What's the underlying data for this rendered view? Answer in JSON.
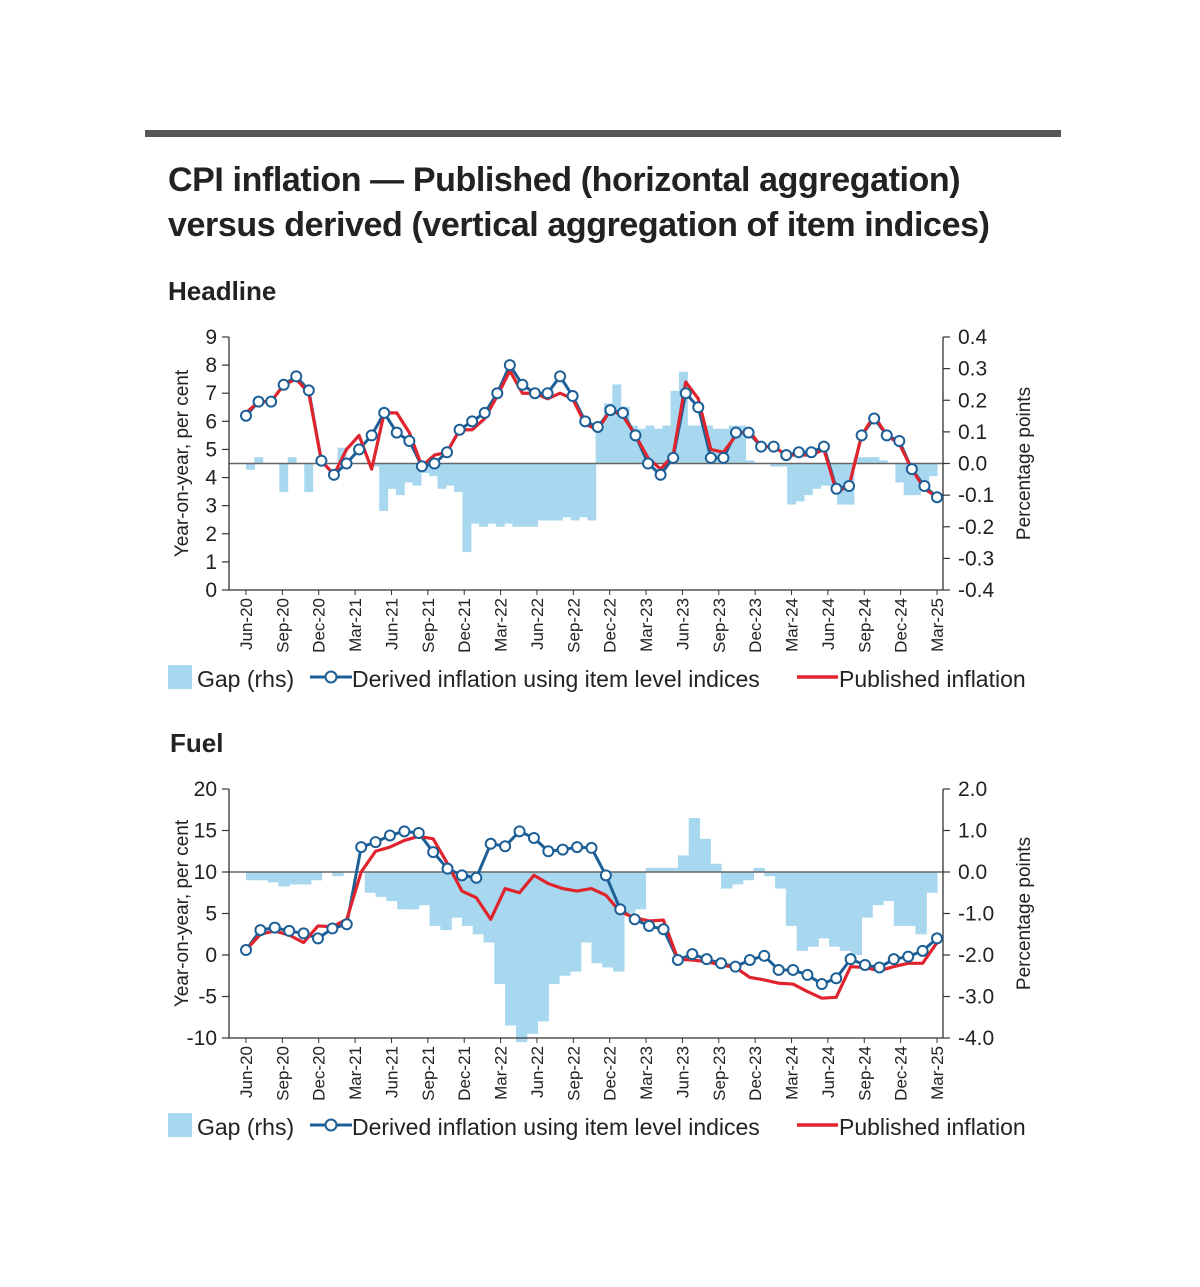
{
  "title": "CPI inflation — Published (horizontal aggregation) versus derived (vertical aggregation of item indices)",
  "colors": {
    "gap": "#a8d8ef",
    "derived": "#1c5f96",
    "published": "#e0242e",
    "zero_line": "#666666",
    "top_rule": "#555555"
  },
  "legend": {
    "gap": "Gap (rhs)",
    "derived": "Derived inflation using item level indices",
    "published": "Published inflation"
  },
  "chart_data": [
    {
      "type": "line",
      "panel_title": "Headline",
      "ylabel": "Year-on-year, per cent",
      "y2label": "Percentage points",
      "ylim": [
        0,
        9
      ],
      "yticks": [
        "0",
        "1",
        "2",
        "3",
        "4",
        "5",
        "6",
        "7",
        "8",
        "9"
      ],
      "y2lim": [
        -0.4,
        0.4
      ],
      "y2ticks": [
        "-0.4",
        "-0.3",
        "-0.2",
        "-0.1",
        "0.0",
        "0.1",
        "0.2",
        "0.3",
        "0.4"
      ],
      "x_tick_labels": [
        "Jun-20",
        "Sep-20",
        "Dec-20",
        "Mar-21",
        "Jun-21",
        "Sep-21",
        "Dec-21",
        "Mar-22",
        "Jun-22",
        "Sep-22",
        "Dec-22",
        "Mar-23",
        "Jun-23",
        "Sep-23",
        "Dec-23",
        "Mar-24",
        "Jun-24",
        "Sep-24",
        "Dec-24",
        "Mar-25"
      ],
      "series": [
        {
          "name": "Gap (rhs)",
          "kind": "bar",
          "axis": "right",
          "values": [
            -0.02,
            0.02,
            0.0,
            0.0,
            -0.09,
            0.02,
            0.0,
            -0.09,
            0.0,
            0.0,
            0.0,
            0.05,
            0.0,
            0.0,
            0.0,
            -0.01,
            -0.15,
            -0.08,
            -0.1,
            -0.06,
            -0.07,
            -0.03,
            -0.04,
            -0.08,
            -0.07,
            -0.09,
            -0.28,
            -0.19,
            -0.2,
            -0.19,
            -0.2,
            -0.19,
            -0.2,
            -0.2,
            -0.2,
            -0.18,
            -0.18,
            -0.18,
            -0.17,
            -0.18,
            -0.17,
            -0.18,
            0.11,
            0.19,
            0.25,
            0.18,
            0.12,
            0.11,
            0.12,
            0.11,
            0.12,
            0.23,
            0.29,
            0.12,
            0.12,
            0.12,
            0.11,
            0.11,
            0.12,
            0.12,
            0.01,
            0.0,
            0.0,
            -0.01,
            -0.01,
            -0.13,
            -0.12,
            -0.1,
            -0.08,
            -0.07,
            -0.07,
            -0.13,
            -0.13,
            0.02,
            0.02,
            0.02,
            0.01,
            0.0,
            -0.06,
            -0.1,
            -0.1,
            -0.07,
            -0.04
          ]
        },
        {
          "name": "Derived inflation using item level indices",
          "kind": "line-marker",
          "axis": "left",
          "values": [
            6.2,
            6.7,
            6.7,
            7.3,
            7.6,
            7.1,
            4.6,
            4.1,
            4.5,
            5.0,
            5.5,
            6.3,
            5.6,
            5.3,
            4.4,
            4.5,
            4.9,
            5.7,
            6.0,
            6.3,
            7.0,
            8.0,
            7.3,
            7.0,
            7.0,
            7.6,
            6.9,
            6.0,
            5.8,
            6.4,
            6.3,
            5.5,
            4.5,
            4.1,
            4.7,
            7.0,
            6.5,
            4.7,
            4.7,
            5.6,
            5.6,
            5.1,
            5.1,
            4.8,
            4.9,
            4.9,
            5.1,
            3.6,
            3.7,
            5.5,
            6.1,
            5.5,
            5.3,
            4.3,
            3.7,
            3.3
          ]
        },
        {
          "name": "Published inflation",
          "kind": "line",
          "axis": "left",
          "values": [
            6.3,
            6.7,
            6.7,
            7.3,
            7.5,
            7.0,
            4.6,
            4.1,
            5.0,
            5.5,
            4.3,
            6.3,
            6.3,
            5.6,
            4.4,
            4.8,
            4.9,
            5.7,
            5.7,
            6.1,
            6.9,
            7.8,
            7.0,
            7.0,
            6.8,
            7.0,
            6.8,
            5.9,
            5.7,
            6.4,
            6.2,
            5.5,
            4.7,
            4.3,
            4.8,
            7.4,
            6.8,
            5.0,
            4.9,
            5.5,
            5.7,
            5.1,
            5.1,
            4.8,
            4.8,
            4.8,
            5.0,
            3.5,
            3.7,
            5.5,
            6.2,
            5.5,
            5.2,
            4.3,
            3.6,
            3.3
          ]
        }
      ]
    },
    {
      "type": "line",
      "panel_title": "Fuel",
      "ylabel": "Year-on-year, per cent",
      "y2label": "Percentage points",
      "ylim": [
        -10,
        20
      ],
      "yticks": [
        "-10",
        "-5",
        "0",
        "5",
        "10",
        "15",
        "20"
      ],
      "y2lim": [
        -4.0,
        2.0
      ],
      "y2ticks": [
        "-4.0",
        "-3.0",
        "-2.0",
        "-1.0",
        "0.0",
        "1.0",
        "2.0"
      ],
      "x_tick_labels": [
        "Jun-20",
        "Sep-20",
        "Dec-20",
        "Mar-21",
        "Jun-21",
        "Sep-21",
        "Dec-21",
        "Mar-22",
        "Jun-22",
        "Sep-22",
        "Dec-22",
        "Mar-23",
        "Jun-23",
        "Sep-23",
        "Dec-23",
        "Mar-24",
        "Jun-24",
        "Sep-24",
        "Dec-24",
        "Mar-25"
      ],
      "series": [
        {
          "name": "Gap (rhs)",
          "kind": "bar",
          "axis": "right",
          "values": [
            -0.2,
            -0.2,
            -0.25,
            -0.35,
            -0.3,
            -0.3,
            -0.2,
            0.0,
            -0.1,
            0.0,
            0.0,
            -0.5,
            -0.6,
            -0.7,
            -0.9,
            -0.9,
            -0.8,
            -1.3,
            -1.4,
            -1.1,
            -1.3,
            -1.5,
            -1.7,
            -2.7,
            -3.7,
            -4.1,
            -3.9,
            -3.6,
            -2.7,
            -2.5,
            -2.4,
            -1.7,
            -2.2,
            -2.3,
            -2.4,
            -1.0,
            -0.9,
            0.1,
            0.1,
            0.1,
            0.4,
            1.3,
            0.8,
            0.2,
            -0.4,
            -0.3,
            -0.2,
            0.1,
            -0.1,
            -0.4,
            -1.3,
            -1.9,
            -1.8,
            -1.6,
            -1.8,
            -1.9,
            -2.0,
            -1.1,
            -0.8,
            -0.7,
            -1.3,
            -1.3,
            -1.5,
            -0.5
          ]
        },
        {
          "name": "Derived inflation using item level indices",
          "kind": "line-marker",
          "axis": "left",
          "values": [
            0.6,
            3.0,
            3.3,
            2.9,
            2.6,
            2.0,
            3.2,
            3.7,
            13.0,
            13.6,
            14.4,
            14.9,
            14.7,
            12.4,
            10.4,
            9.6,
            9.3,
            13.4,
            13.1,
            14.9,
            14.1,
            12.5,
            12.7,
            13.0,
            12.9,
            9.6,
            5.5,
            4.3,
            3.5,
            3.1,
            -0.6,
            0.1,
            -0.5,
            -1.0,
            -1.4,
            -0.6,
            -0.1,
            -1.8,
            -1.8,
            -2.4,
            -3.5,
            -2.8,
            -0.5,
            -1.2,
            -1.5,
            -0.5,
            -0.2,
            0.5,
            2.0
          ]
        },
        {
          "name": "Published inflation",
          "kind": "line",
          "axis": "left",
          "values": [
            0.6,
            2.5,
            2.9,
            2.4,
            1.5,
            3.5,
            3.4,
            4.3,
            10.0,
            12.5,
            13.0,
            13.8,
            14.3,
            14.0,
            11.0,
            7.7,
            6.9,
            4.3,
            8.0,
            7.5,
            9.6,
            8.6,
            8.0,
            7.7,
            8.0,
            7.2,
            5.2,
            4.5,
            4.1,
            4.2,
            -0.5,
            -0.6,
            -0.8,
            -1.2,
            -1.5,
            -2.7,
            -3.0,
            -3.4,
            -3.5,
            -4.4,
            -5.2,
            -5.1,
            -1.4,
            -1.5,
            -1.9,
            -1.4,
            -1.0,
            -1.0,
            1.5
          ]
        }
      ]
    }
  ]
}
